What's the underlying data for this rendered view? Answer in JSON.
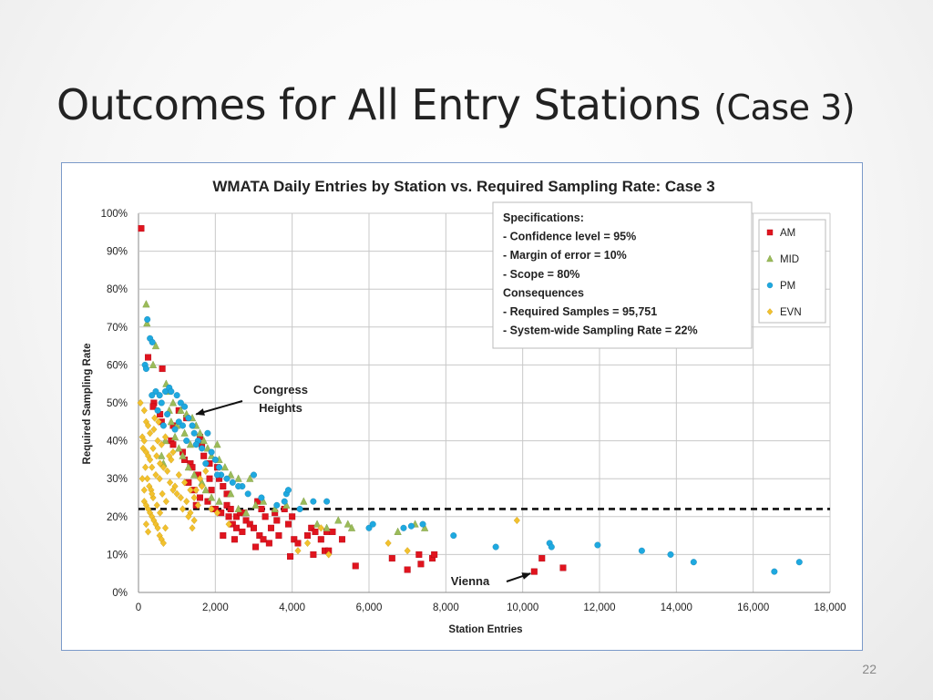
{
  "slide": {
    "title_main": "Outcomes for All Entry Stations",
    "title_sub": "(Case 3)",
    "page_number": "22"
  },
  "chart_data": {
    "type": "scatter",
    "title": "WMATA Daily Entries by Station vs. Required Sampling Rate: Case 3",
    "xlabel": "Station Entries",
    "ylabel": "Required Sampling Rate",
    "xlim": [
      0,
      18000
    ],
    "ylim": [
      0,
      100
    ],
    "x_ticks": [
      "0",
      "2,000",
      "4,000",
      "6,000",
      "8,000",
      "10,000",
      "12,000",
      "14,000",
      "16,000",
      "18,000"
    ],
    "y_ticks": [
      "0%",
      "10%",
      "20%",
      "30%",
      "40%",
      "50%",
      "60%",
      "70%",
      "80%",
      "90%",
      "100%"
    ],
    "grid": true,
    "legend_position": "top-right",
    "reference_line": {
      "y": 22,
      "style": "dashed"
    },
    "specifications_box": [
      "Specifications:",
      "- Confidence level = 95%",
      "- Margin of error = 10%",
      "- Scope = 80%",
      "Consequences",
      "- Required Samples = 95,751",
      "- System-wide Sampling Rate = 22%"
    ],
    "annotations": [
      {
        "text": [
          "Congress",
          "Heights"
        ],
        "point": [
          1500,
          47
        ]
      },
      {
        "text": [
          "Vienna"
        ],
        "point": [
          10200,
          5
        ]
      }
    ],
    "series": [
      {
        "name": "AM",
        "color": "#e0141e",
        "marker": "square",
        "points": [
          [
            70,
            96
          ],
          [
            250,
            62
          ],
          [
            620,
            59
          ],
          [
            400,
            50
          ],
          [
            380,
            49
          ],
          [
            560,
            47
          ],
          [
            600,
            45
          ],
          [
            900,
            44
          ],
          [
            1050,
            48
          ],
          [
            1250,
            46
          ],
          [
            850,
            40
          ],
          [
            900,
            39
          ],
          [
            1150,
            37
          ],
          [
            1200,
            35
          ],
          [
            1350,
            34
          ],
          [
            1600,
            41
          ],
          [
            1650,
            39
          ],
          [
            1700,
            36
          ],
          [
            1850,
            34
          ],
          [
            1400,
            33
          ],
          [
            1550,
            31
          ],
          [
            1850,
            30
          ],
          [
            1900,
            27
          ],
          [
            2050,
            33
          ],
          [
            2100,
            30
          ],
          [
            2200,
            28
          ],
          [
            1300,
            29
          ],
          [
            1450,
            27
          ],
          [
            1600,
            25
          ],
          [
            1500,
            23
          ],
          [
            1800,
            24
          ],
          [
            1950,
            22
          ],
          [
            2000,
            22
          ],
          [
            2150,
            21
          ],
          [
            2300,
            23
          ],
          [
            2350,
            20
          ],
          [
            2400,
            22
          ],
          [
            2450,
            18
          ],
          [
            2550,
            20
          ],
          [
            2650,
            21
          ],
          [
            2550,
            17
          ],
          [
            2700,
            16
          ],
          [
            2800,
            19
          ],
          [
            2900,
            18
          ],
          [
            3000,
            17
          ],
          [
            3100,
            24
          ],
          [
            3200,
            22
          ],
          [
            3300,
            20
          ],
          [
            3150,
            15
          ],
          [
            3450,
            17
          ],
          [
            3550,
            21
          ],
          [
            3600,
            19
          ],
          [
            3800,
            22
          ],
          [
            3900,
            18
          ],
          [
            4000,
            20
          ],
          [
            4050,
            14
          ],
          [
            4150,
            13
          ],
          [
            4400,
            15
          ],
          [
            4500,
            17
          ],
          [
            4600,
            16
          ],
          [
            4750,
            14
          ],
          [
            4850,
            11
          ],
          [
            4900,
            16
          ],
          [
            5050,
            16
          ],
          [
            5300,
            14
          ],
          [
            2200,
            15
          ],
          [
            2500,
            14
          ],
          [
            3250,
            14
          ],
          [
            3400,
            13
          ],
          [
            3050,
            12
          ],
          [
            3950,
            9.5
          ],
          [
            4550,
            10
          ],
          [
            4950,
            11
          ],
          [
            5650,
            7
          ],
          [
            6600,
            9
          ],
          [
            7000,
            6
          ],
          [
            7300,
            10
          ],
          [
            7350,
            7.5
          ],
          [
            7650,
            9
          ],
          [
            7700,
            10
          ],
          [
            10300,
            5.5
          ],
          [
            10500,
            9
          ],
          [
            11050,
            6.5
          ],
          [
            2300,
            26
          ],
          [
            2750,
            21
          ],
          [
            3650,
            15
          ]
        ]
      },
      {
        "name": "MID",
        "color": "#9bbb59",
        "marker": "triangle",
        "points": [
          [
            200,
            76
          ],
          [
            220,
            71
          ],
          [
            450,
            65
          ],
          [
            380,
            60
          ],
          [
            720,
            55
          ],
          [
            780,
            53
          ],
          [
            900,
            50
          ],
          [
            1100,
            48
          ],
          [
            1250,
            47
          ],
          [
            1400,
            46
          ],
          [
            1500,
            44
          ],
          [
            1600,
            42
          ],
          [
            1700,
            40
          ],
          [
            1800,
            38
          ],
          [
            1900,
            36
          ],
          [
            2050,
            39
          ],
          [
            2100,
            35
          ],
          [
            2250,
            33
          ],
          [
            2400,
            31
          ],
          [
            2600,
            30
          ],
          [
            850,
            45
          ],
          [
            950,
            41
          ],
          [
            1050,
            38
          ],
          [
            1150,
            36
          ],
          [
            1300,
            33
          ],
          [
            1450,
            31
          ],
          [
            1650,
            29
          ],
          [
            1750,
            27
          ],
          [
            1900,
            25
          ],
          [
            2100,
            24
          ],
          [
            2400,
            26
          ],
          [
            2600,
            22
          ],
          [
            2800,
            21
          ],
          [
            3050,
            23
          ],
          [
            3250,
            24
          ],
          [
            3550,
            22
          ],
          [
            3850,
            23
          ],
          [
            4300,
            24
          ],
          [
            4650,
            18
          ],
          [
            4900,
            17
          ],
          [
            5450,
            18
          ],
          [
            5550,
            17
          ],
          [
            6750,
            16
          ],
          [
            7200,
            18
          ],
          [
            7450,
            17
          ],
          [
            600,
            36
          ],
          [
            700,
            40
          ],
          [
            1000,
            44
          ],
          [
            1200,
            42
          ],
          [
            650,
            34
          ],
          [
            5200,
            19
          ],
          [
            2900,
            30
          ],
          [
            1350,
            39
          ],
          [
            800,
            48
          ]
        ]
      },
      {
        "name": "PM",
        "color": "#1ea9e0",
        "marker": "circle",
        "points": [
          [
            170,
            60
          ],
          [
            230,
            72
          ],
          [
            300,
            67
          ],
          [
            360,
            66
          ],
          [
            450,
            53
          ],
          [
            550,
            52
          ],
          [
            600,
            50
          ],
          [
            700,
            53
          ],
          [
            800,
            54
          ],
          [
            850,
            53
          ],
          [
            1000,
            52
          ],
          [
            1100,
            50
          ],
          [
            1200,
            49
          ],
          [
            1050,
            45
          ],
          [
            1150,
            44
          ],
          [
            1300,
            46
          ],
          [
            1400,
            44
          ],
          [
            1450,
            42
          ],
          [
            1550,
            40
          ],
          [
            1650,
            38
          ],
          [
            1800,
            42
          ],
          [
            1900,
            37
          ],
          [
            2000,
            35
          ],
          [
            2100,
            33
          ],
          [
            2150,
            31
          ],
          [
            2300,
            30
          ],
          [
            2450,
            29
          ],
          [
            2700,
            28
          ],
          [
            2850,
            26
          ],
          [
            3000,
            31
          ],
          [
            3200,
            25
          ],
          [
            3600,
            23
          ],
          [
            3800,
            24
          ],
          [
            3850,
            26
          ],
          [
            3900,
            27
          ],
          [
            4200,
            22
          ],
          [
            4550,
            24
          ],
          [
            4900,
            24
          ],
          [
            6000,
            17
          ],
          [
            6100,
            18
          ],
          [
            6900,
            17
          ],
          [
            7100,
            17.5
          ],
          [
            7400,
            18
          ],
          [
            8200,
            15
          ],
          [
            9300,
            12
          ],
          [
            10700,
            13
          ],
          [
            10750,
            12
          ],
          [
            11950,
            12.5
          ],
          [
            13100,
            11
          ],
          [
            13850,
            10
          ],
          [
            14450,
            8
          ],
          [
            16550,
            5.5
          ],
          [
            17200,
            8
          ],
          [
            200,
            59
          ],
          [
            350,
            52
          ],
          [
            500,
            48
          ],
          [
            950,
            43
          ],
          [
            1250,
            40
          ],
          [
            1500,
            39
          ],
          [
            1750,
            34
          ],
          [
            2050,
            31
          ],
          [
            2600,
            28
          ],
          [
            650,
            44
          ],
          [
            750,
            47
          ]
        ]
      },
      {
        "name": "EVN",
        "color": "#f2c12e",
        "marker": "diamond",
        "points": [
          [
            50,
            50
          ],
          [
            150,
            48
          ],
          [
            200,
            45
          ],
          [
            250,
            44
          ],
          [
            100,
            41
          ],
          [
            150,
            40
          ],
          [
            120,
            38
          ],
          [
            200,
            37
          ],
          [
            250,
            36
          ],
          [
            300,
            35
          ],
          [
            350,
            33
          ],
          [
            180,
            33
          ],
          [
            230,
            30
          ],
          [
            280,
            28
          ],
          [
            330,
            27
          ],
          [
            380,
            25
          ],
          [
            150,
            24
          ],
          [
            200,
            23
          ],
          [
            250,
            22
          ],
          [
            300,
            21
          ],
          [
            350,
            20
          ],
          [
            400,
            19
          ],
          [
            450,
            18
          ],
          [
            500,
            17
          ],
          [
            550,
            15
          ],
          [
            600,
            14
          ],
          [
            650,
            13
          ],
          [
            700,
            17
          ],
          [
            200,
            18
          ],
          [
            250,
            16
          ],
          [
            450,
            31
          ],
          [
            550,
            30
          ],
          [
            650,
            33
          ],
          [
            750,
            32
          ],
          [
            850,
            35
          ],
          [
            950,
            28
          ],
          [
            1050,
            31
          ],
          [
            1200,
            29
          ],
          [
            1350,
            27
          ],
          [
            1450,
            25
          ],
          [
            1550,
            23
          ],
          [
            1350,
            21
          ],
          [
            1450,
            19
          ],
          [
            1500,
            27
          ],
          [
            1650,
            28
          ],
          [
            1250,
            24
          ],
          [
            1150,
            22
          ],
          [
            400,
            43
          ],
          [
            500,
            40
          ],
          [
            600,
            39
          ],
          [
            700,
            41
          ],
          [
            800,
            36
          ],
          [
            900,
            37
          ],
          [
            1000,
            26
          ],
          [
            1100,
            25
          ],
          [
            1300,
            20
          ],
          [
            1400,
            17
          ],
          [
            1600,
            30
          ],
          [
            1750,
            32
          ],
          [
            1900,
            22
          ],
          [
            2050,
            21
          ],
          [
            2350,
            18
          ],
          [
            4150,
            11
          ],
          [
            4400,
            13
          ],
          [
            4950,
            10
          ],
          [
            6500,
            13
          ],
          [
            9850,
            19
          ],
          [
            4750,
            17
          ],
          [
            7000,
            11
          ],
          [
            350,
            26
          ],
          [
            480,
            23
          ],
          [
            560,
            21
          ],
          [
            620,
            26
          ],
          [
            720,
            24
          ],
          [
            820,
            29
          ],
          [
            900,
            27
          ],
          [
            380,
            38
          ],
          [
            470,
            36
          ],
          [
            560,
            34
          ],
          [
            150,
            27
          ],
          [
            100,
            30
          ],
          [
            300,
            42
          ],
          [
            420,
            46
          ],
          [
            520,
            45
          ]
        ]
      }
    ]
  }
}
